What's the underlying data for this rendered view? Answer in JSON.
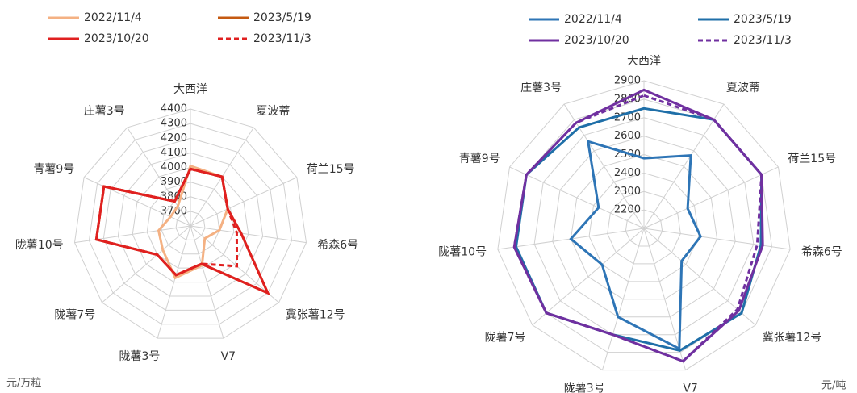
{
  "chart_data": [
    {
      "type": "radar",
      "unit_label": "元/万粒",
      "categories": [
        "大西洋",
        "夏波蒂",
        "荷兰15号",
        "希森6号",
        "冀张薯12号",
        "V7",
        "陇薯3号",
        "陇薯7号",
        "陇薯10号",
        "青薯9号",
        "庄薯3号"
      ],
      "rlim": [
        3600,
        4400
      ],
      "rticks": [
        3700,
        3800,
        3900,
        4000,
        4100,
        4200,
        4300,
        4400
      ],
      "series": [
        {
          "name": "2022/11/4",
          "color": "#f4b183",
          "dashed": false,
          "values": [
            4010,
            4000,
            3880,
            3800,
            3730,
            3880,
            3970,
            3850,
            3820,
            3750,
            3760
          ]
        },
        {
          "name": "2023/5/19",
          "color": "#c55a11",
          "dashed": false,
          "values": [
            3990,
            4000,
            3880,
            3950,
            4300,
            3870,
            3950,
            3900,
            4250,
            4250,
            3800
          ]
        },
        {
          "name": "2023/10/20",
          "color": "#e02020",
          "dashed": false,
          "values": [
            3990,
            4000,
            3880,
            3950,
            4300,
            3870,
            3950,
            3900,
            4250,
            4250,
            3800
          ]
        },
        {
          "name": "2023/11/3",
          "color": "#e02020",
          "dashed": true,
          "values": [
            3990,
            4000,
            3880,
            3920,
            4020,
            3870,
            3950,
            3900,
            4250,
            4250,
            3800
          ]
        }
      ]
    },
    {
      "type": "radar",
      "unit_label": "元/吨",
      "categories": [
        "大西洋",
        "夏波蒂",
        "荷兰15号",
        "希森6号",
        "冀张薯12号",
        "V7",
        "陇薯3号",
        "陇薯7号",
        "陇薯10号",
        "青薯9号",
        "庄薯3号"
      ],
      "rlim": [
        2100,
        2900
      ],
      "rticks": [
        2200,
        2300,
        2400,
        2500,
        2600,
        2700,
        2800,
        2900
      ],
      "series": [
        {
          "name": "2022/11/4",
          "color": "#2e75b6",
          "dashed": false,
          "values": [
            2480,
            2570,
            2360,
            2410,
            2370,
            2780,
            2600,
            2400,
            2500,
            2370,
            2660
          ]
        },
        {
          "name": "2023/5/19",
          "color": "#1f6fa8",
          "dashed": false,
          "values": [
            2750,
            2800,
            2800,
            2740,
            2800,
            2790,
            2700,
            2800,
            2800,
            2800,
            2750
          ]
        },
        {
          "name": "2023/10/20",
          "color": "#7030a0",
          "dashed": false,
          "values": [
            2850,
            2800,
            2800,
            2750,
            2780,
            2850,
            2700,
            2800,
            2810,
            2800,
            2780
          ]
        },
        {
          "name": "2023/11/3",
          "color": "#7030a0",
          "dashed": true,
          "values": [
            2820,
            2800,
            2800,
            2720,
            2770,
            2850,
            2700,
            2800,
            2810,
            2800,
            2780
          ]
        }
      ]
    }
  ]
}
